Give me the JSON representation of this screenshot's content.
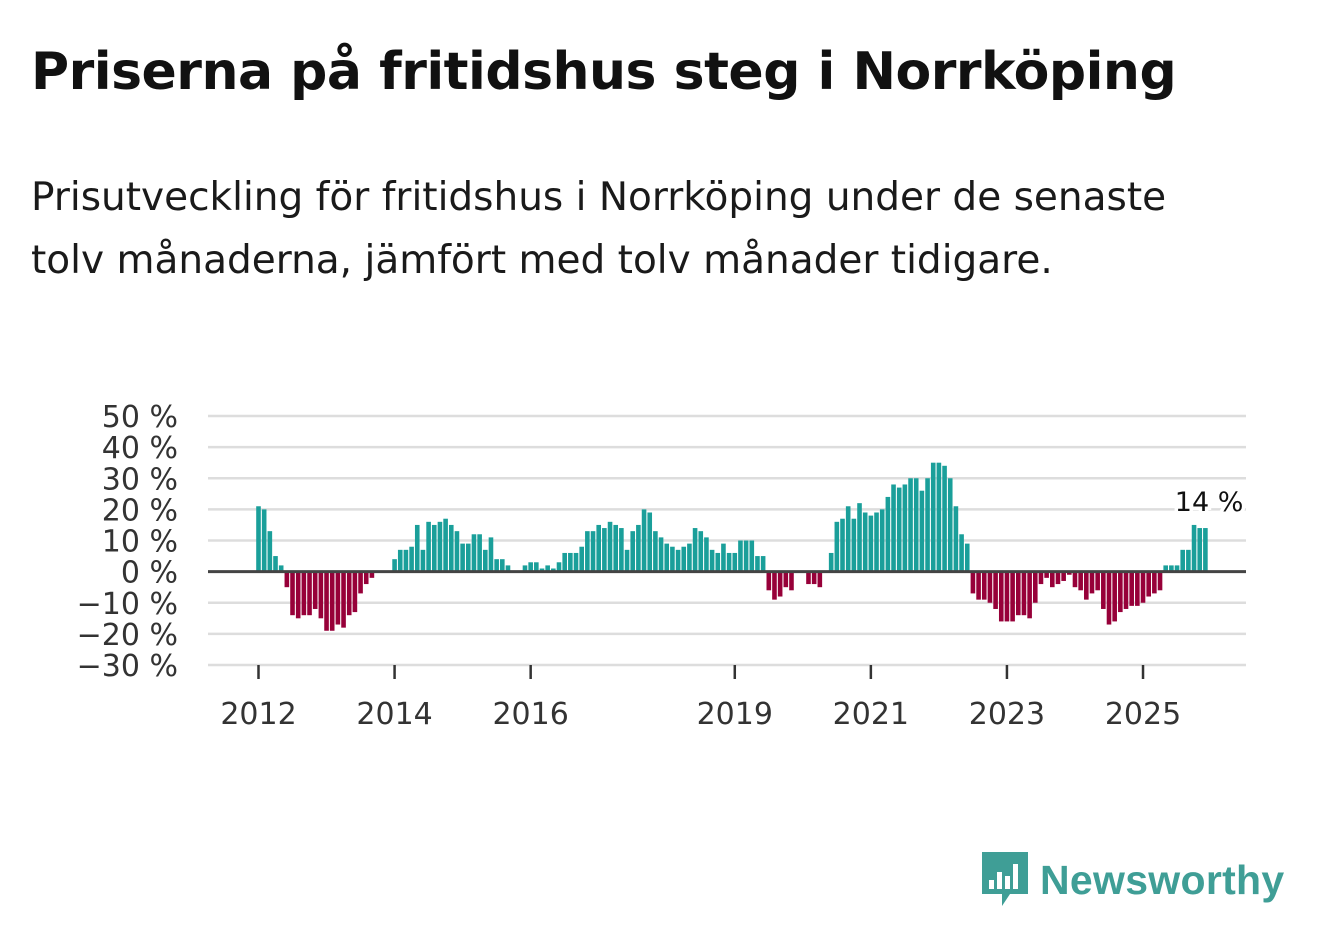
{
  "title": "Priserna på fritidshus steg i Norrköping",
  "subtitle": "Prisutveckling för fritidshus i Norrköping under de senaste tolv månaderna, jämfört med tolv månader tidigare.",
  "brand": "Newsworthy",
  "colors": {
    "positive": "#1a9f9a",
    "negative": "#970039",
    "grid": "#dddddd",
    "zero": "#444444",
    "brand": "#3f9e96"
  },
  "chart_data": {
    "type": "bar",
    "title": "Priserna på fritidshus steg i Norrköping",
    "xlabel": "",
    "ylabel": "",
    "ylim": [
      -30,
      50
    ],
    "yticks": [
      50,
      40,
      30,
      20,
      10,
      0,
      -10,
      -20,
      -30
    ],
    "ytick_labels": [
      "50 %",
      "40 %",
      "30 %",
      "20 %",
      "10 %",
      "0 %",
      "−10 %",
      "−20 %",
      "−30 %"
    ],
    "xticks": [
      {
        "label": "2012",
        "index": 0
      },
      {
        "label": "2014",
        "index": 24
      },
      {
        "label": "2016",
        "index": 48
      },
      {
        "label": "2019",
        "index": 84
      },
      {
        "label": "2021",
        "index": 108
      },
      {
        "label": "2023",
        "index": 132
      },
      {
        "label": "2025",
        "index": 156
      }
    ],
    "start": "2012-01",
    "frequency": "monthly",
    "values": [
      21,
      20,
      13,
      5,
      2,
      -5,
      -14,
      -15,
      -14,
      -14,
      -12,
      -15,
      -19,
      -19,
      -17,
      -18,
      -14,
      -13,
      -7,
      -4,
      -2,
      0,
      0,
      0,
      4,
      7,
      7,
      8,
      15,
      7,
      16,
      15,
      16,
      17,
      15,
      13,
      9,
      9,
      12,
      12,
      7,
      11,
      4,
      4,
      2,
      0,
      0,
      2,
      3,
      3,
      1,
      2,
      1,
      3,
      6,
      6,
      6,
      8,
      13,
      13,
      15,
      14,
      16,
      15,
      14,
      7,
      13,
      15,
      20,
      19,
      13,
      11,
      9,
      8,
      7,
      8,
      9,
      14,
      13,
      11,
      7,
      6,
      9,
      6,
      6,
      10,
      10,
      10,
      5,
      5,
      -6,
      -9,
      -8,
      -5,
      -6,
      0,
      0,
      -4,
      -4,
      -5,
      0,
      6,
      16,
      17,
      21,
      17,
      22,
      19,
      18,
      19,
      20,
      24,
      28,
      27,
      28,
      30,
      30,
      26,
      30,
      35,
      35,
      34,
      30,
      21,
      12,
      9,
      -7,
      -9,
      -9,
      -10,
      -12,
      -16,
      -16,
      -16,
      -14,
      -14,
      -15,
      -10,
      -4,
      -2,
      -5,
      -4,
      -3,
      -1,
      -5,
      -6,
      -9,
      -7,
      -6,
      -12,
      -17,
      -16,
      -13,
      -12,
      -11,
      -11,
      -10,
      -8,
      -7,
      -6,
      2,
      2,
      2,
      7,
      7,
      15,
      14,
      14
    ],
    "last_value_label": "14 %"
  }
}
